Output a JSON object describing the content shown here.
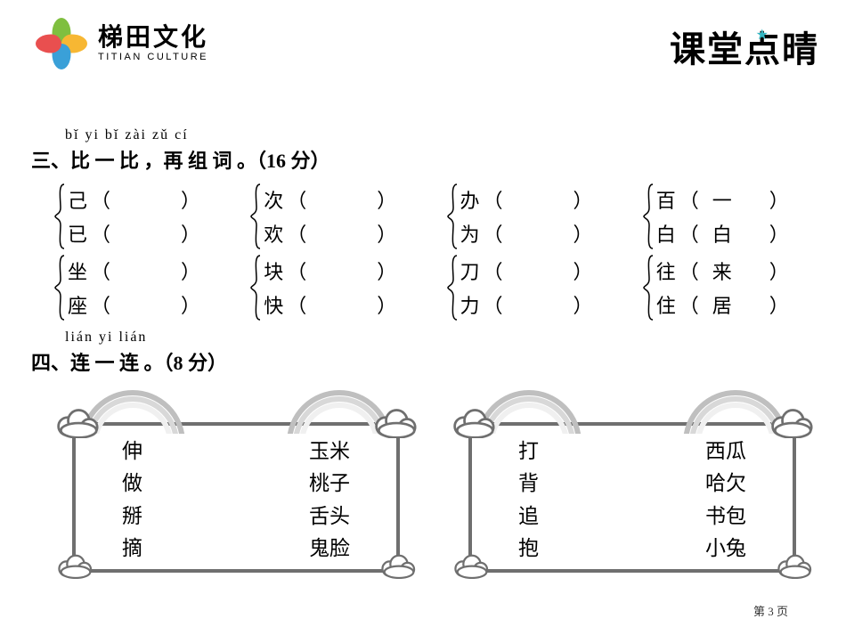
{
  "logo": {
    "cn": "梯田文化",
    "en": "TITIAN CULTURE",
    "petal_colors": [
      "#7fbf3f",
      "#f7b733",
      "#3aa0d8",
      "#e94f4f"
    ]
  },
  "title_right": "课堂点晴",
  "title_star_color": "#35b6c2",
  "section3": {
    "pinyin": "bǐ yi bǐ   zài zǔ cí",
    "heading": "三、比 一 比 ，再 组 词 。（16 分）",
    "pairs": [
      [
        {
          "a": "己",
          "a_hint": "",
          "b": "已",
          "b_hint": ""
        },
        {
          "a": "次",
          "a_hint": "",
          "b": "欢",
          "b_hint": ""
        },
        {
          "a": "办",
          "a_hint": "",
          "b": "为",
          "b_hint": ""
        },
        {
          "a": "百",
          "a_hint": "一",
          "b": "白",
          "b_hint": "白"
        }
      ],
      [
        {
          "a": "坐",
          "a_hint": "",
          "b": "座",
          "b_hint": ""
        },
        {
          "a": "块",
          "a_hint": "",
          "b": "快",
          "b_hint": ""
        },
        {
          "a": "刀",
          "a_hint": "",
          "b": "力",
          "b_hint": ""
        },
        {
          "a": "往",
          "a_hint": "来",
          "b": "住",
          "b_hint": "居"
        }
      ]
    ]
  },
  "section4": {
    "pinyin": "lián yi lián",
    "heading": "四、连 一 连 。（8 分）",
    "boxes": [
      {
        "left": [
          "伸",
          "做",
          "掰",
          "摘"
        ],
        "right": [
          "玉米",
          "桃子",
          "舌头",
          "鬼脸"
        ]
      },
      {
        "left": [
          "打",
          "背",
          "追",
          "抱"
        ],
        "right": [
          "西瓜",
          "哈欠",
          "书包",
          "小兔"
        ]
      }
    ],
    "frame_color": "#6f6f6f",
    "rainbow_colors": [
      "#bfbfbf",
      "#d8d8d8",
      "#f0f0f0"
    ]
  },
  "footer": "第 3 页"
}
